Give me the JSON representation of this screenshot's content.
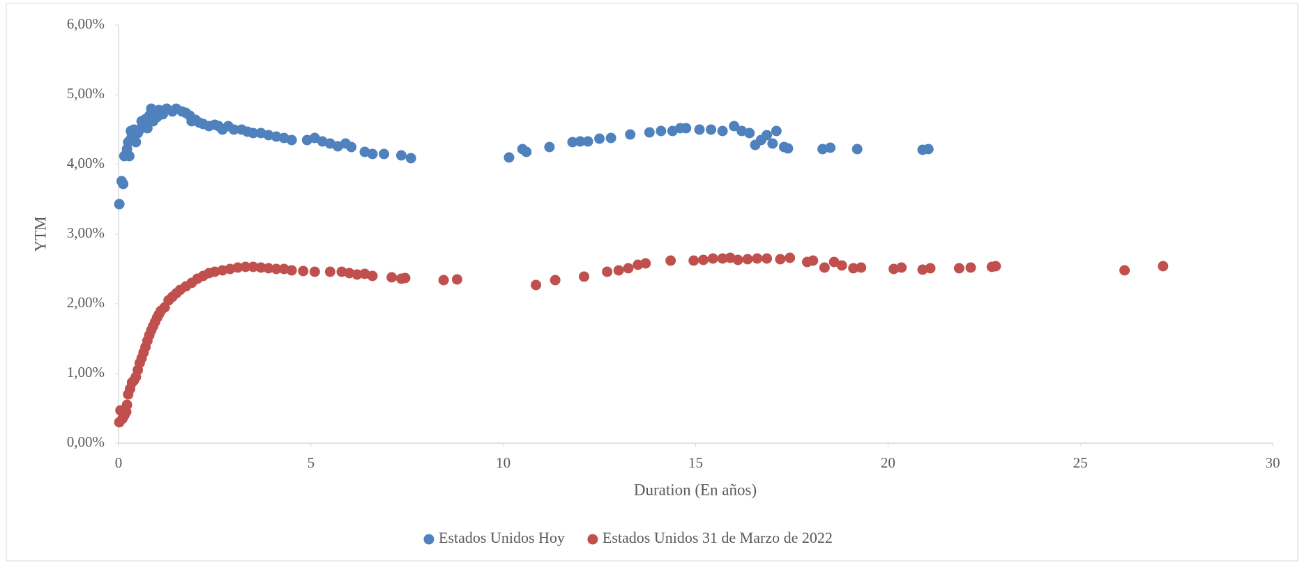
{
  "chart_data": {
    "type": "scatter",
    "x_label": "Duration (En años)",
    "y_label": "YTM",
    "xlim": [
      0,
      30
    ],
    "xticks": [
      0,
      5,
      10,
      15,
      20,
      25,
      30
    ],
    "ylim": [
      0,
      6
    ],
    "yticks": [
      {
        "value": 0,
        "label": "0,00%"
      },
      {
        "value": 1,
        "label": "1,00%"
      },
      {
        "value": 2,
        "label": "2,00%"
      },
      {
        "value": 3,
        "label": "3,00%"
      },
      {
        "value": 4,
        "label": "4,00%"
      },
      {
        "value": 5,
        "label": "5,00%"
      },
      {
        "value": 6,
        "label": "6,00%"
      }
    ],
    "grid": false,
    "legend": "bottom",
    "series": [
      {
        "name": "Estados Unidos Hoy",
        "color": "#4f81bd",
        "x": [
          0.02,
          0.08,
          0.12,
          0.15,
          0.2,
          0.22,
          0.25,
          0.28,
          0.3,
          0.32,
          0.35,
          0.4,
          0.45,
          0.5,
          0.55,
          0.6,
          0.65,
          0.7,
          0.75,
          0.8,
          0.85,
          0.9,
          0.95,
          1.0,
          1.05,
          1.15,
          1.25,
          1.4,
          1.5,
          1.65,
          1.75,
          1.85,
          1.9,
          2.0,
          2.1,
          2.2,
          2.35,
          2.5,
          2.6,
          2.7,
          2.85,
          3.0,
          3.2,
          3.35,
          3.5,
          3.7,
          3.9,
          4.1,
          4.3,
          4.5,
          4.9,
          5.1,
          5.3,
          5.5,
          5.7,
          5.9,
          6.05,
          6.4,
          6.6,
          6.9,
          7.35,
          7.6,
          10.15,
          10.5,
          10.6,
          11.2,
          11.8,
          12.0,
          12.2,
          12.5,
          12.8,
          13.3,
          13.8,
          14.1,
          14.4,
          14.6,
          14.75,
          15.1,
          15.4,
          15.7,
          16.0,
          16.2,
          16.4,
          16.55,
          16.7,
          16.85,
          17.0,
          17.1,
          17.3,
          17.4,
          18.3,
          18.5,
          19.2,
          20.9,
          21.05
        ],
        "values": [
          3.43,
          3.76,
          3.72,
          4.12,
          4.15,
          4.22,
          4.32,
          4.12,
          4.35,
          4.48,
          4.42,
          4.5,
          4.32,
          4.45,
          4.5,
          4.62,
          4.55,
          4.65,
          4.52,
          4.7,
          4.8,
          4.62,
          4.75,
          4.68,
          4.78,
          4.72,
          4.8,
          4.76,
          4.8,
          4.76,
          4.74,
          4.7,
          4.62,
          4.64,
          4.6,
          4.58,
          4.55,
          4.57,
          4.55,
          4.5,
          4.55,
          4.5,
          4.5,
          4.47,
          4.45,
          4.45,
          4.42,
          4.4,
          4.38,
          4.35,
          4.35,
          4.38,
          4.33,
          4.3,
          4.26,
          4.3,
          4.25,
          4.18,
          4.15,
          4.15,
          4.13,
          4.09,
          4.1,
          4.22,
          4.18,
          4.25,
          4.32,
          4.33,
          4.33,
          4.37,
          4.38,
          4.43,
          4.46,
          4.48,
          4.48,
          4.52,
          4.52,
          4.5,
          4.5,
          4.48,
          4.55,
          4.48,
          4.45,
          4.28,
          4.35,
          4.42,
          4.3,
          4.48,
          4.25,
          4.23,
          4.22,
          4.24,
          4.22,
          4.21,
          4.22
        ]
      },
      {
        "name": "Estados Unidos 31 de Marzo de 2022",
        "color": "#c0504d",
        "x": [
          0.02,
          0.05,
          0.1,
          0.15,
          0.2,
          0.22,
          0.25,
          0.3,
          0.35,
          0.4,
          0.45,
          0.5,
          0.55,
          0.6,
          0.65,
          0.7,
          0.75,
          0.8,
          0.85,
          0.9,
          0.95,
          1.0,
          1.05,
          1.1,
          1.2,
          1.3,
          1.4,
          1.5,
          1.6,
          1.75,
          1.9,
          2.05,
          2.2,
          2.35,
          2.5,
          2.7,
          2.9,
          3.1,
          3.3,
          3.5,
          3.7,
          3.9,
          4.1,
          4.3,
          4.5,
          4.8,
          5.1,
          5.5,
          5.8,
          6.0,
          6.2,
          6.4,
          6.6,
          7.1,
          7.35,
          7.45,
          8.45,
          8.8,
          10.85,
          11.35,
          12.1,
          12.7,
          13.0,
          13.25,
          13.5,
          13.7,
          14.35,
          14.95,
          15.2,
          15.45,
          15.7,
          15.9,
          16.1,
          16.35,
          16.6,
          16.85,
          17.2,
          17.45,
          17.9,
          18.05,
          18.35,
          18.6,
          18.8,
          19.1,
          19.3,
          20.15,
          20.35,
          20.9,
          21.1,
          21.85,
          22.15,
          22.7,
          22.8,
          26.15,
          27.15
        ],
        "values": [
          0.3,
          0.47,
          0.35,
          0.4,
          0.45,
          0.55,
          0.7,
          0.78,
          0.87,
          0.9,
          0.95,
          1.05,
          1.15,
          1.22,
          1.3,
          1.38,
          1.47,
          1.55,
          1.62,
          1.68,
          1.74,
          1.8,
          1.85,
          1.9,
          1.95,
          2.05,
          2.1,
          2.15,
          2.2,
          2.25,
          2.3,
          2.36,
          2.4,
          2.44,
          2.46,
          2.48,
          2.5,
          2.52,
          2.53,
          2.53,
          2.52,
          2.51,
          2.5,
          2.5,
          2.48,
          2.47,
          2.46,
          2.46,
          2.46,
          2.44,
          2.42,
          2.43,
          2.4,
          2.38,
          2.36,
          2.37,
          2.34,
          2.35,
          2.27,
          2.34,
          2.39,
          2.46,
          2.48,
          2.51,
          2.56,
          2.58,
          2.62,
          2.62,
          2.63,
          2.65,
          2.65,
          2.66,
          2.63,
          2.64,
          2.65,
          2.65,
          2.64,
          2.66,
          2.6,
          2.62,
          2.52,
          2.6,
          2.55,
          2.51,
          2.52,
          2.5,
          2.52,
          2.49,
          2.51,
          2.51,
          2.52,
          2.53,
          2.54,
          2.48,
          2.54
        ]
      }
    ]
  }
}
